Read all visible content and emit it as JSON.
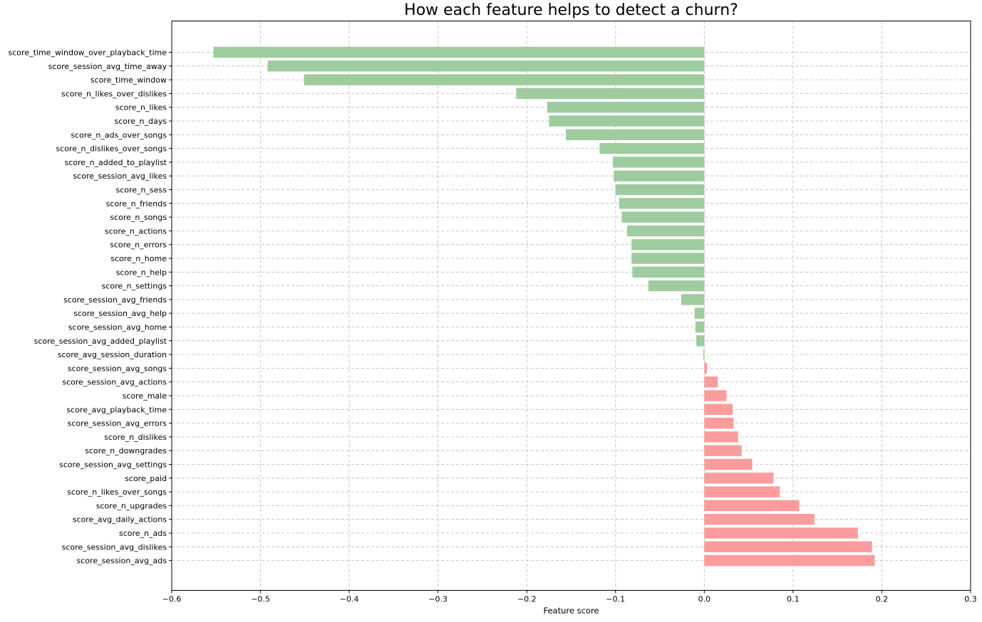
{
  "chart_data": {
    "type": "bar",
    "orientation": "horizontal",
    "title": "How each feature helps to detect a churn?",
    "xlabel": "Feature score",
    "ylabel": "",
    "xlim": [
      -0.6,
      0.3
    ],
    "xticks": [
      -0.6,
      -0.5,
      -0.4,
      -0.3,
      -0.2,
      -0.1,
      0.0,
      0.1,
      0.2,
      0.3
    ],
    "xtick_labels": [
      "−0.6",
      "−0.5",
      "−0.4",
      "−0.3",
      "−0.2",
      "−0.1",
      "0.0",
      "0.1",
      "0.2",
      "0.3"
    ],
    "grid": true,
    "negative_color": "#9ecc9e",
    "positive_color": "#fb9c9c",
    "categories": [
      "score_time_window_over_playback_time",
      "score_session_avg_time_away",
      "score_time_window",
      "score_n_likes_over_dislikes",
      "score_n_likes",
      "score_n_days",
      "score_n_ads_over_songs",
      "score_n_dislikes_over_songs",
      "score_n_added_to_playlist",
      "score_session_avg_likes",
      "score_n_sess",
      "score_n_friends",
      "score_n_songs",
      "score_n_actions",
      "score_n_errors",
      "score_n_home",
      "score_n_help",
      "score_n_settings",
      "score_session_avg_friends",
      "score_session_avg_help",
      "score_session_avg_home",
      "score_session_avg_added_playlist",
      "score_avg_session_duration",
      "score_session_avg_songs",
      "score_session_avg_actions",
      "score_male",
      "score_avg_playback_time",
      "score_session_avg_errors",
      "score_n_dislikes",
      "score_n_downgrades",
      "score_session_avg_settings",
      "score_paid",
      "score_n_likes_over_songs",
      "score_n_upgrades",
      "score_avg_daily_actions",
      "score_n_ads",
      "score_session_avg_dislikes",
      "score_session_avg_ads"
    ],
    "values": [
      -0.553,
      -0.492,
      -0.451,
      -0.212,
      -0.177,
      -0.175,
      -0.156,
      -0.118,
      -0.103,
      -0.102,
      -0.1,
      -0.096,
      -0.093,
      -0.087,
      -0.082,
      -0.082,
      -0.081,
      -0.063,
      -0.026,
      -0.011,
      -0.01,
      -0.009,
      -0.001,
      0.003,
      0.015,
      0.025,
      0.032,
      0.033,
      0.038,
      0.042,
      0.054,
      0.078,
      0.085,
      0.107,
      0.124,
      0.173,
      0.189,
      0.192
    ]
  }
}
